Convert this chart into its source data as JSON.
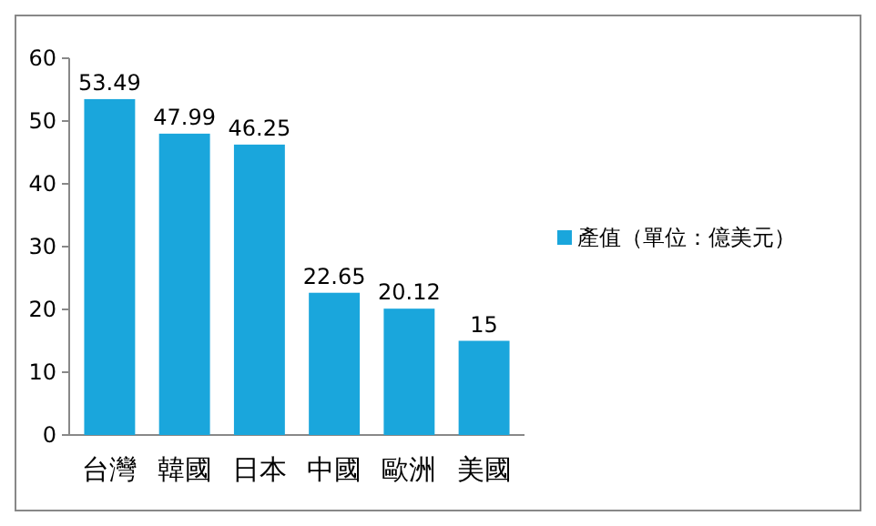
{
  "chart_data": {
    "type": "bar",
    "categories": [
      "台灣",
      "韓國",
      "日本",
      "中國",
      "歐洲",
      "美國"
    ],
    "series": [
      {
        "name": "產值（單位：億美元）",
        "color": "#1aa6dc",
        "values": [
          53.49,
          47.99,
          46.25,
          22.65,
          20.12,
          15
        ]
      }
    ],
    "ylim": [
      0,
      60
    ],
    "yticks": [
      0,
      10,
      20,
      30,
      40,
      50,
      60
    ],
    "data_labels": true,
    "legend": "right",
    "grid": false
  }
}
